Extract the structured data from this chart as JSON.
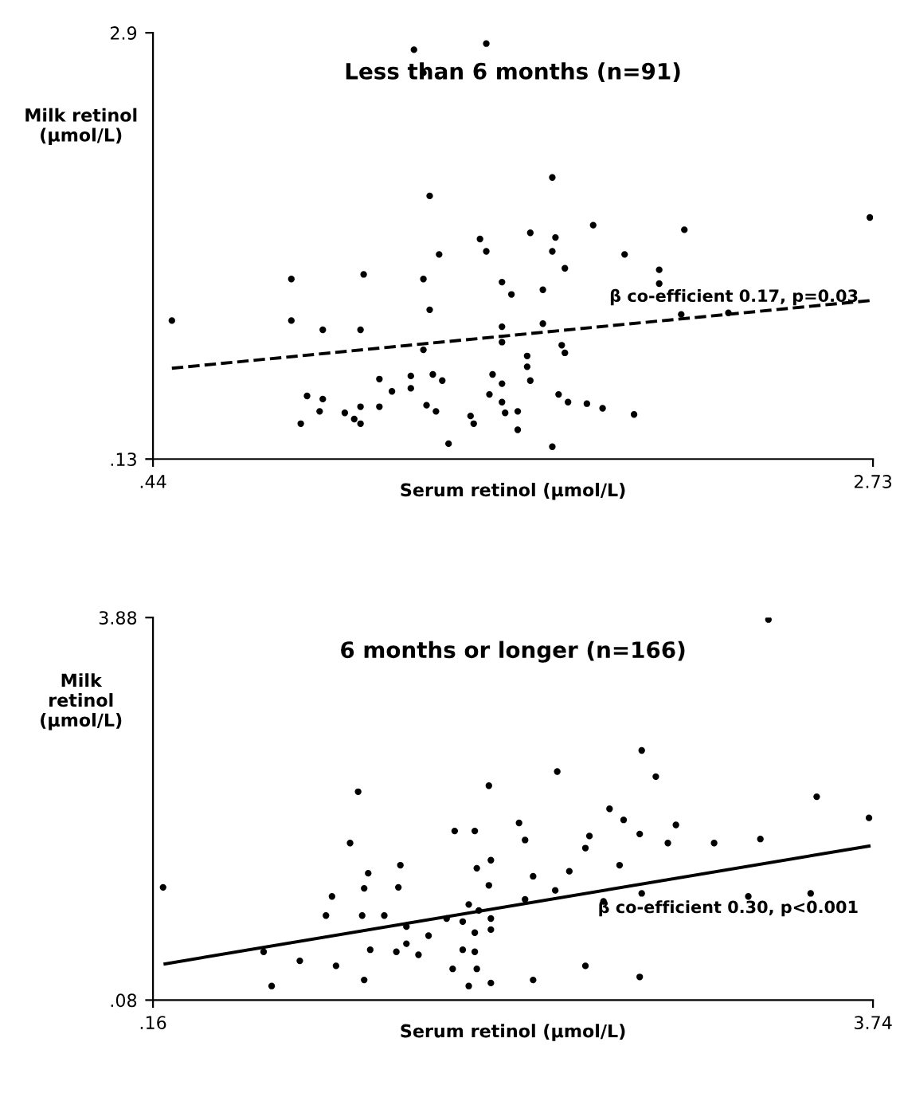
{
  "chart_data": [
    {
      "type": "scatter",
      "title": "Less than 6 months (n=91)",
      "xlabel": "Serum retinol (µmol/L)",
      "ylabel": "Milk retinol\n(µmol/L)",
      "annotations": [
        "β co-efficient 0.17, p=0.03"
      ],
      "xlim": [
        0.44,
        2.73
      ],
      "xticks": [
        {
          "value": 0.44,
          "label": ".44"
        },
        2.73
      ],
      "ylim": [
        0.13,
        2.9
      ],
      "yticks": [
        {
          "value": 0.13,
          "label": ".13"
        },
        2.9
      ],
      "grid": false,
      "legend": false,
      "marker": "circle",
      "series": [
        {
          "color": "#000000",
          "x": [
            1.27,
            1.3,
            1.5,
            1.32,
            1.71,
            1.48,
            1.64,
            1.72,
            1.84,
            2.13,
            2.72,
            0.88,
            1.11,
            1.35,
            1.5,
            1.71,
            1.94,
            1.75,
            2.05,
            2.05,
            1.3,
            1.55,
            1.58,
            1.68,
            0.5,
            0.88,
            0.98,
            1.1,
            1.32,
            1.3,
            1.55,
            1.55,
            1.68,
            1.74,
            1.75,
            1.63,
            1.63,
            2.12,
            2.27,
            1.26,
            1.26,
            1.33,
            1.36,
            1.16,
            1.2,
            0.93,
            0.98,
            0.97,
            1.05,
            1.08,
            1.1,
            0.91,
            1.1,
            1.16,
            1.31,
            1.34,
            1.45,
            1.46,
            1.52,
            1.55,
            1.51,
            1.55,
            1.56,
            1.6,
            1.6,
            1.73,
            1.76,
            1.82,
            1.87,
            1.97,
            1.38,
            1.71,
            1.64
          ],
          "values": [
            2.79,
            2.64,
            2.83,
            1.84,
            1.96,
            1.56,
            1.6,
            1.57,
            1.65,
            1.62,
            1.7,
            1.3,
            1.33,
            1.46,
            1.48,
            1.48,
            1.46,
            1.37,
            1.36,
            1.27,
            1.3,
            1.28,
            1.2,
            1.23,
            1.03,
            1.03,
            0.97,
            0.97,
            1.1,
            0.84,
            0.99,
            0.89,
            1.01,
            0.87,
            0.82,
            0.8,
            0.73,
            1.07,
            1.08,
            0.67,
            0.59,
            0.68,
            0.64,
            0.65,
            0.57,
            0.54,
            0.52,
            0.44,
            0.43,
            0.39,
            0.36,
            0.36,
            0.47,
            0.47,
            0.48,
            0.44,
            0.41,
            0.36,
            0.68,
            0.62,
            0.55,
            0.5,
            0.43,
            0.44,
            0.32,
            0.55,
            0.5,
            0.49,
            0.46,
            0.42,
            0.23,
            0.21,
            0.64
          ]
        },
        {
          "type": "line",
          "color": "#000000",
          "line_style": "dashed",
          "marker": "none",
          "x": [
            0.5,
            2.72
          ],
          "values": [
            0.72,
            1.16
          ]
        }
      ]
    },
    {
      "type": "scatter",
      "title": "6 months or longer (n=166)",
      "xlabel": "Serum retinol (µmol/L)",
      "ylabel": "Milk\nretinol\n(µmol/L)",
      "annotations": [
        "β co-efficient 0.30, p<0.001"
      ],
      "xlim": [
        0.16,
        3.74
      ],
      "xticks": [
        {
          "value": 0.16,
          "label": ".16"
        },
        3.74
      ],
      "ylim": [
        0.08,
        3.88
      ],
      "yticks": [
        {
          "value": 0.08,
          "label": ".08"
        },
        3.88
      ],
      "grid": false,
      "legend": false,
      "marker": "circle",
      "series": [
        {
          "color": "#000000",
          "x": [
            3.22,
            2.59,
            2.66,
            2.17,
            1.83,
            1.18,
            2.43,
            3.46,
            2.5,
            1.98,
            1.66,
            1.76,
            2.01,
            2.76,
            2.58,
            2.72,
            2.95,
            3.18,
            3.72,
            2.33,
            2.31,
            1.14,
            1.39,
            1.23,
            1.21,
            1.38,
            1.05,
            1.02,
            1.2,
            0.21,
            1.77,
            1.84,
            1.83,
            2.05,
            2.01,
            2.23,
            2.16,
            2.48,
            2.4,
            2.59,
            3.12,
            3.43,
            1.73,
            1.78,
            1.7,
            1.84,
            1.62,
            1.31,
            1.42,
            1.53,
            1.42,
            1.37,
            1.48,
            1.24,
            1.76,
            1.84,
            1.7,
            1.76,
            0.71,
            0.89,
            1.07,
            1.65,
            1.77,
            1.73,
            1.84,
            1.21,
            2.05,
            2.31,
            2.58,
            0.75
          ],
          "values": [
            3.86,
            2.56,
            2.3,
            2.35,
            2.21,
            2.15,
            1.98,
            2.1,
            1.87,
            1.84,
            1.76,
            1.76,
            1.67,
            1.82,
            1.73,
            1.64,
            1.64,
            1.68,
            1.89,
            1.71,
            1.59,
            1.64,
            1.42,
            1.34,
            1.19,
            1.2,
            1.11,
            0.92,
            0.92,
            1.2,
            1.39,
            1.47,
            1.22,
            1.31,
            1.08,
            1.36,
            1.17,
            1.42,
            1.06,
            1.14,
            1.11,
            1.14,
            1.03,
            0.97,
            0.86,
            0.89,
            0.89,
            0.92,
            0.81,
            0.72,
            0.64,
            0.56,
            0.53,
            0.58,
            0.75,
            0.78,
            0.58,
            0.56,
            0.56,
            0.47,
            0.42,
            0.39,
            0.39,
            0.22,
            0.25,
            0.28,
            0.28,
            0.42,
            0.31,
            0.22
          ]
        },
        {
          "type": "line",
          "color": "#000000",
          "line_style": "solid",
          "marker": "none",
          "x": [
            0.22,
            3.72
          ],
          "values": [
            0.44,
            1.61
          ]
        }
      ]
    }
  ]
}
